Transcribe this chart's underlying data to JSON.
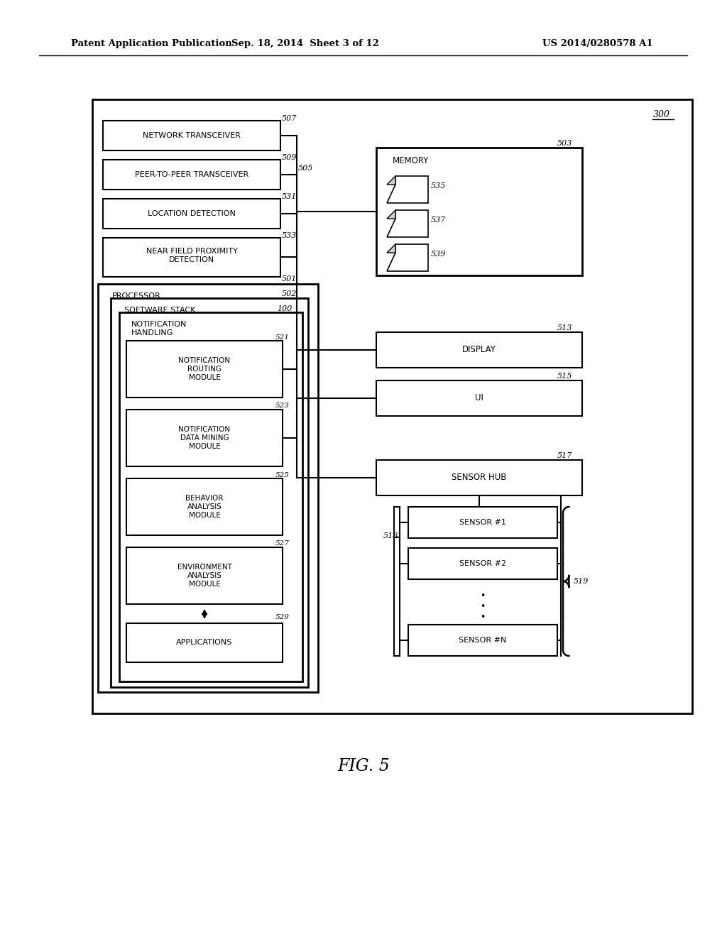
{
  "header_left": "Patent Application Publication",
  "header_mid": "Sep. 18, 2014  Sheet 3 of 12",
  "header_right": "US 2014/0280578 A1",
  "figure_label": "FIG. 5",
  "bg_color": "#ffffff"
}
